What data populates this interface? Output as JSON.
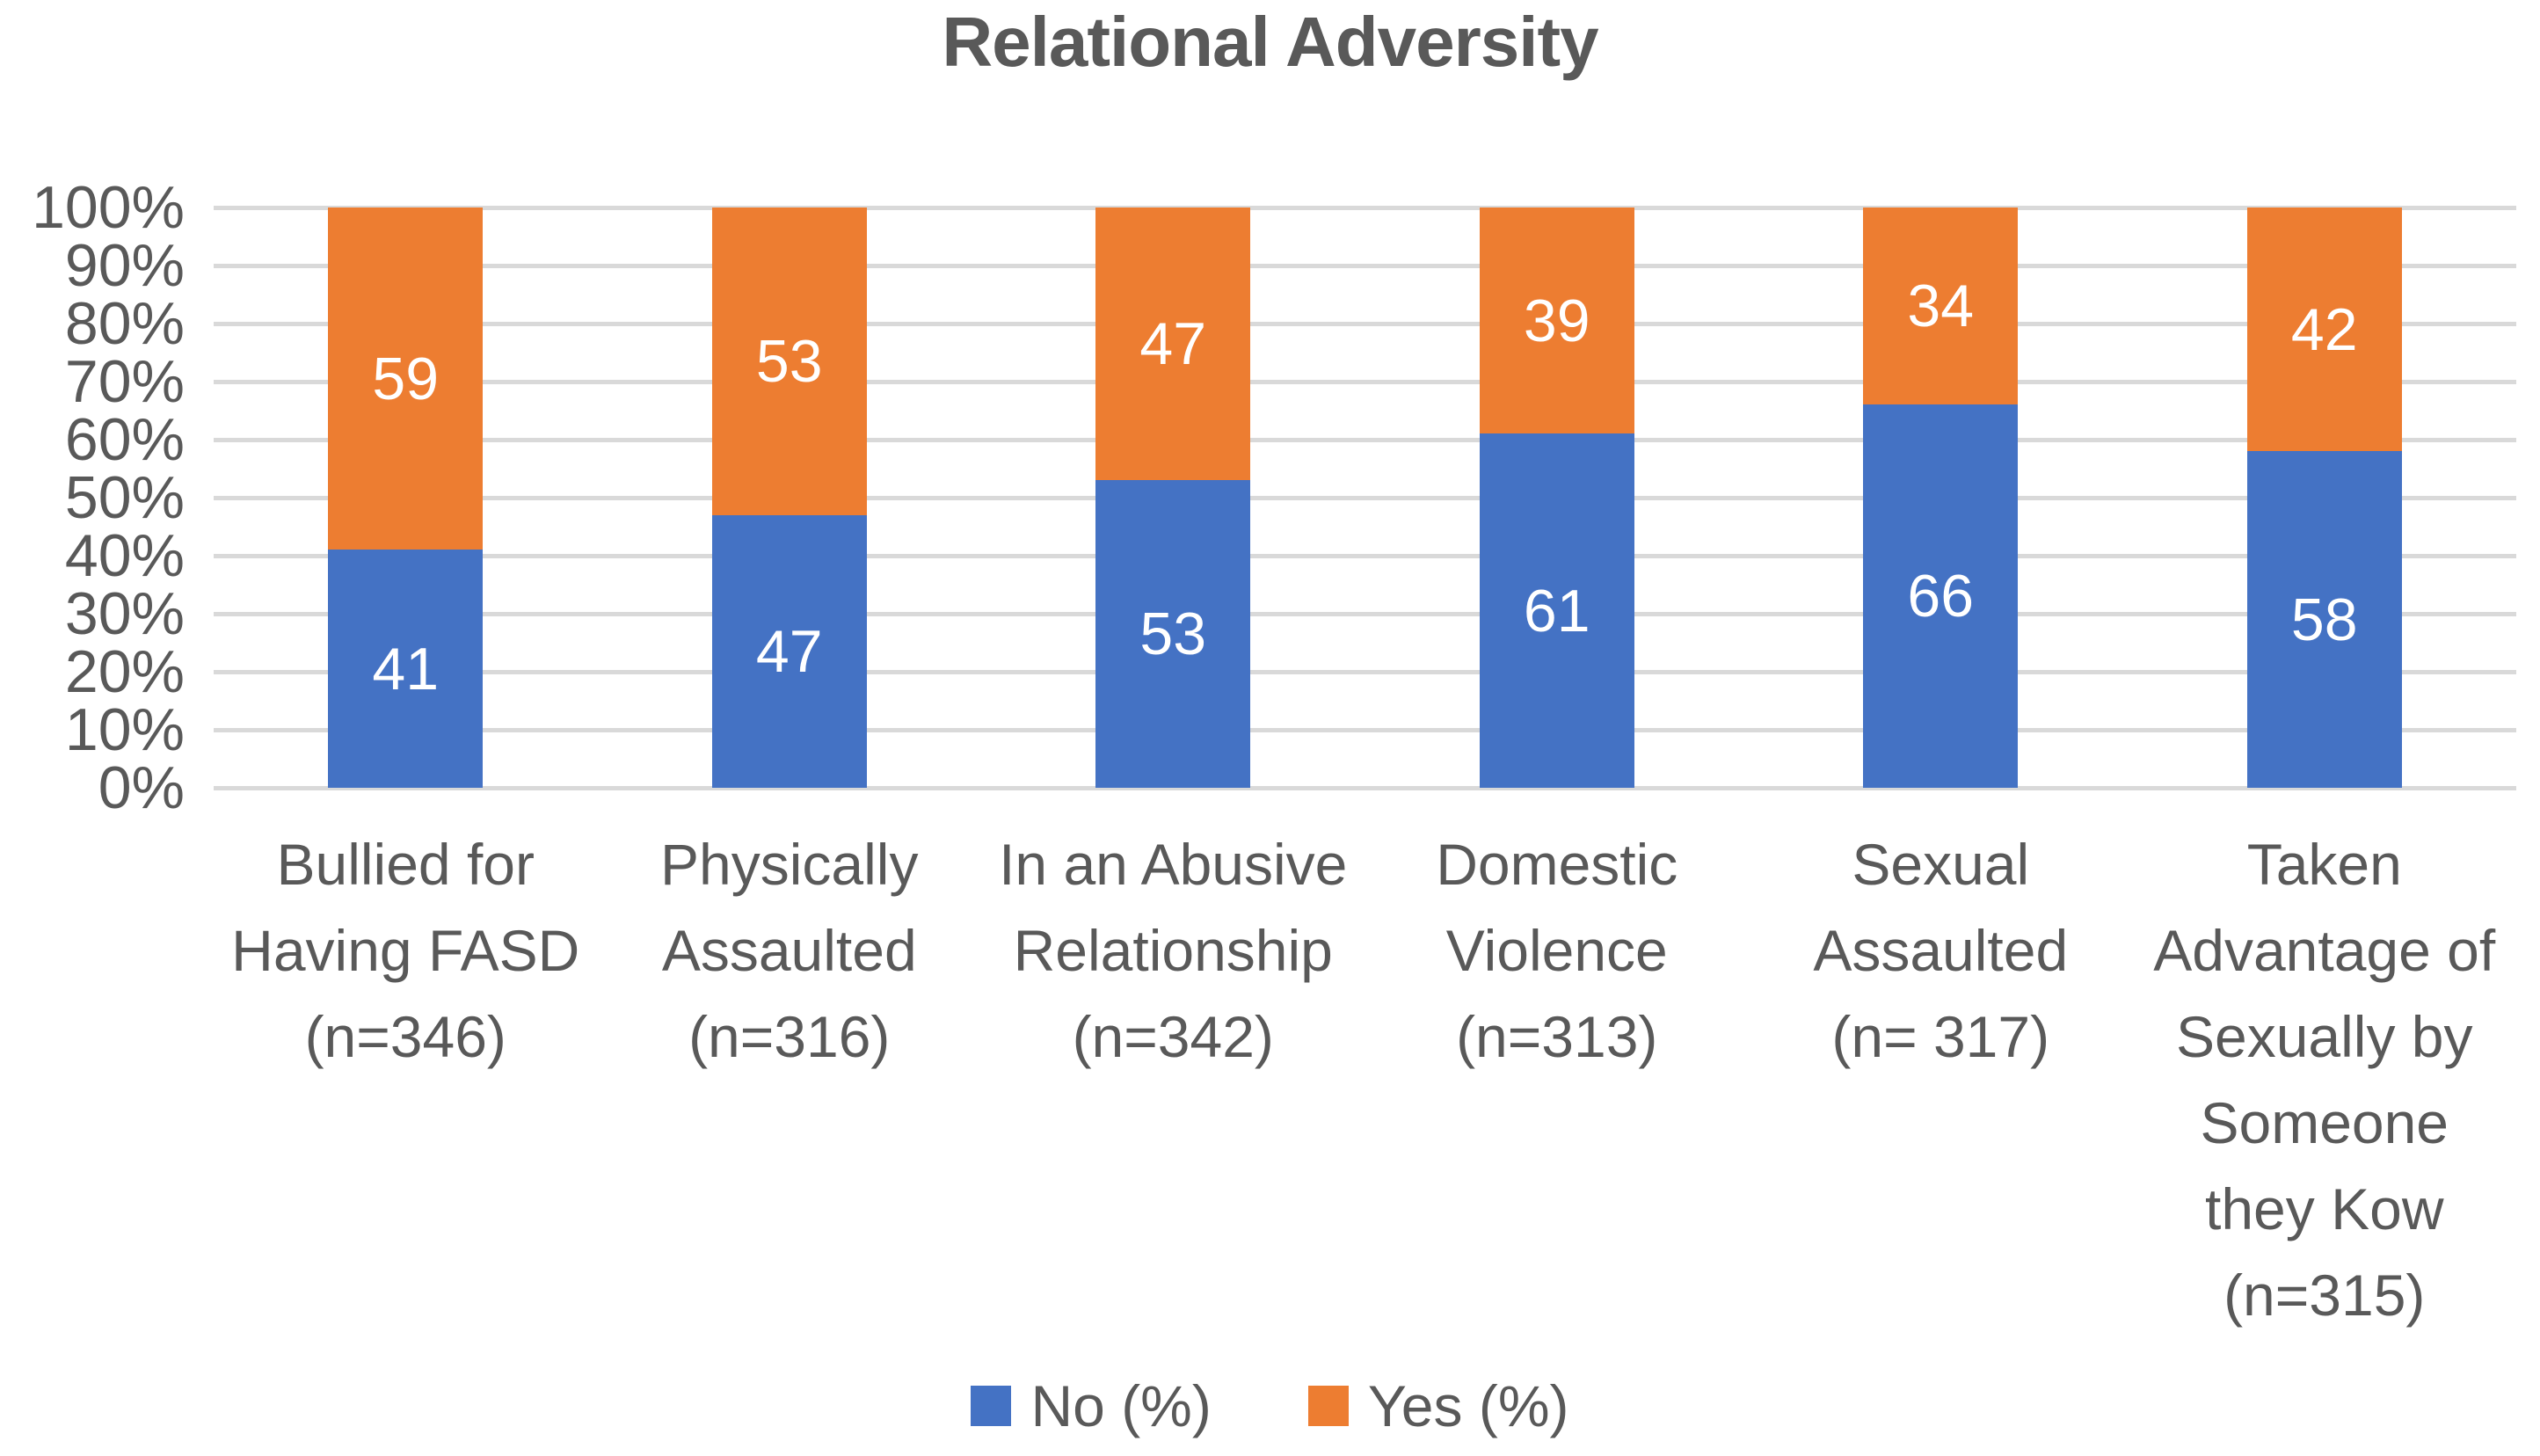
{
  "chart_data": {
    "type": "bar",
    "subtype": "stacked-100",
    "title": "Relational Adversity",
    "xlabel": "",
    "ylabel": "",
    "ylim": [
      0,
      100
    ],
    "grid": true,
    "legend_position": "bottom",
    "y_ticks_top_to_bottom": [
      "100%",
      "90%",
      "80%",
      "70%",
      "60%",
      "50%",
      "40%",
      "30%",
      "20%",
      "10%",
      "0%"
    ],
    "categories": [
      "Bullied for\nHaving FASD\n(n=346)",
      "Physically\nAssaulted\n(n=316)",
      "In an Abusive\nRelationship\n(n=342)",
      "Domestic\nViolence\n(n=313)",
      "Sexual\nAssaulted\n(n= 317)",
      "Taken\nAdvantage of\nSexually by\nSomeone\nthey Kow\n(n=315)"
    ],
    "series": [
      {
        "name": "No (%)",
        "color": "#4472C4",
        "values": [
          41,
          47,
          53,
          61,
          66,
          58
        ]
      },
      {
        "name": "Yes (%)",
        "color": "#ED7D31",
        "values": [
          59,
          53,
          47,
          39,
          34,
          42
        ]
      }
    ],
    "colors": {
      "title_text": "#595959",
      "axis_text": "#595959",
      "gridline": "#D9D9D9",
      "data_label_text": "#FFFFFF",
      "background": "#FFFFFF"
    }
  }
}
